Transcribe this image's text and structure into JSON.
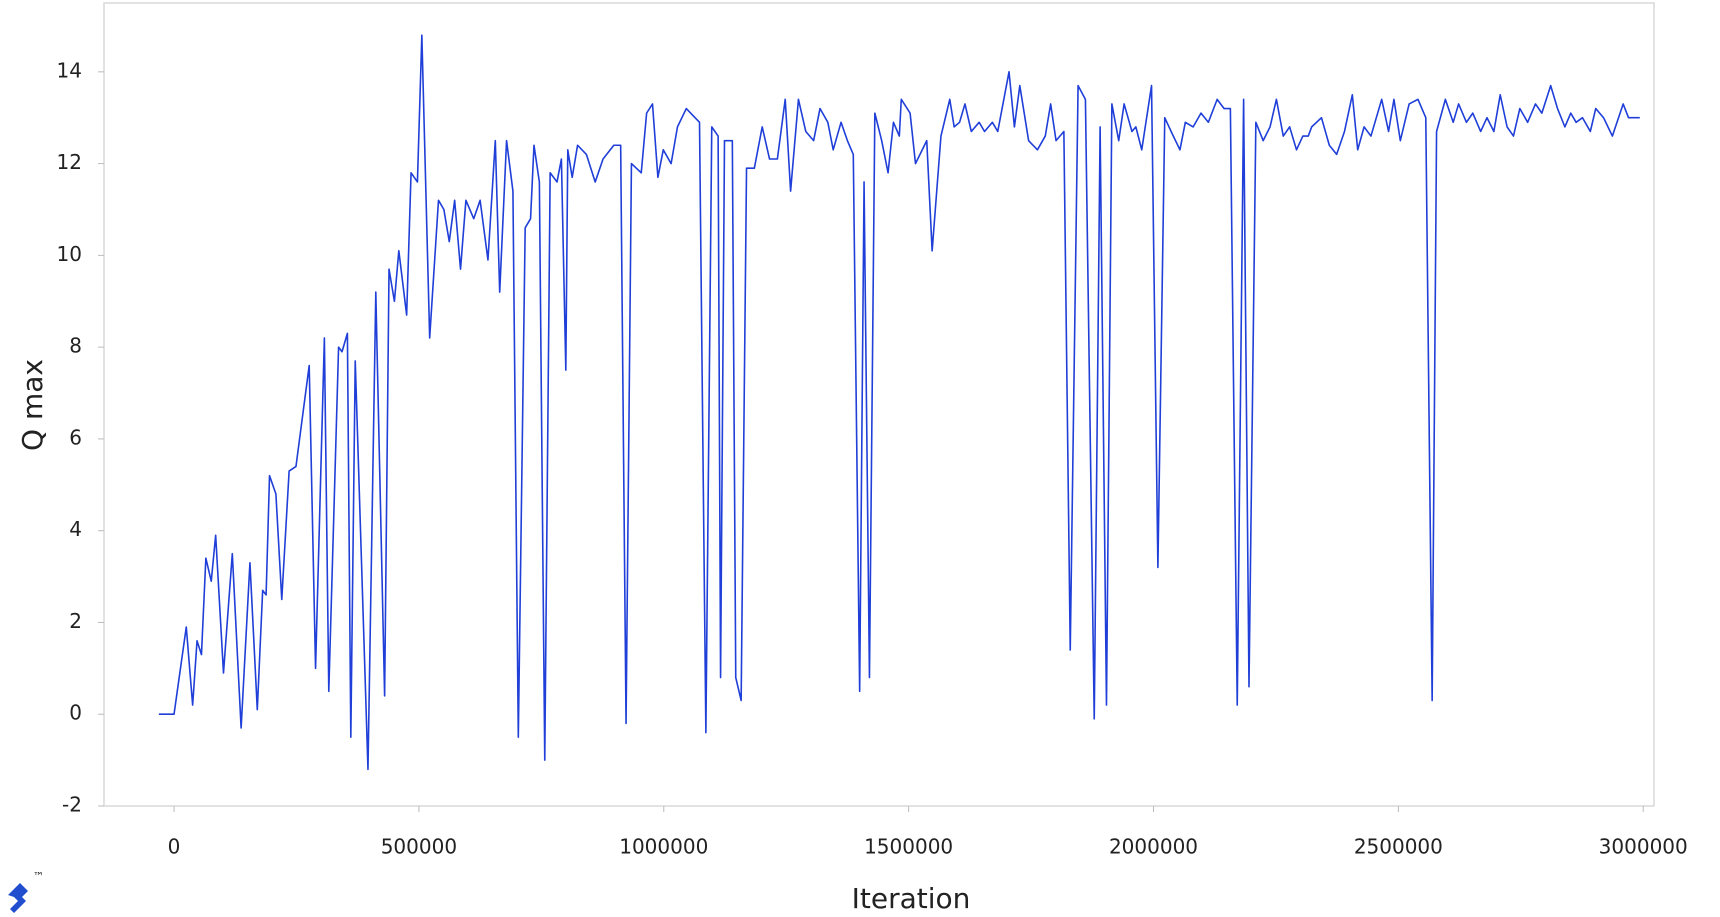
{
  "chart_data": {
    "type": "line",
    "xlabel": "Iteration",
    "ylabel": "Q max",
    "watermark": "™",
    "xlim": [
      -143000,
      3022000
    ],
    "ylim": [
      -2,
      15.5
    ],
    "xticks": [
      0,
      500000,
      1000000,
      1500000,
      2000000,
      2500000,
      3000000
    ],
    "yticks": [
      -2,
      0,
      2,
      4,
      6,
      8,
      10,
      12,
      14
    ],
    "grid": false,
    "series": [
      {
        "color": "#1f3fd8",
        "x": [
          -31000,
          0,
          25000,
          38000,
          47000,
          56000,
          65000,
          76000,
          85000,
          101000,
          119000,
          137000,
          155000,
          170000,
          181000,
          188000,
          195000,
          208000,
          220000,
          235000,
          249000,
          276000,
          289000,
          307000,
          316000,
          336000,
          343000,
          354000,
          361000,
          370000,
          396000,
          412000,
          430000,
          439000,
          450000,
          459000,
          475000,
          484000,
          497000,
          506000,
          522000,
          540000,
          551000,
          562000,
          573000,
          585000,
          596000,
          612000,
          625000,
          641000,
          656000,
          665000,
          679000,
          692000,
          703000,
          717000,
          728000,
          735000,
          746000,
          757000,
          768000,
          782000,
          791000,
          800000,
          804000,
          813000,
          824000,
          842000,
          860000,
          876000,
          898000,
          912000,
          923000,
          934000,
          954000,
          965000,
          977000,
          988000,
          999000,
          1015000,
          1028000,
          1046000,
          1073000,
          1086000,
          1098000,
          1111000,
          1116000,
          1124000,
          1140000,
          1147000,
          1158000,
          1169000,
          1185000,
          1201000,
          1216000,
          1232000,
          1248000,
          1259000,
          1275000,
          1290000,
          1306000,
          1319000,
          1335000,
          1346000,
          1362000,
          1375000,
          1387000,
          1400000,
          1409000,
          1420000,
          1431000,
          1445000,
          1458000,
          1469000,
          1481000,
          1485000,
          1503000,
          1514000,
          1537000,
          1548000,
          1566000,
          1584000,
          1593000,
          1604000,
          1615000,
          1628000,
          1644000,
          1655000,
          1671000,
          1682000,
          1705000,
          1716000,
          1727000,
          1745000,
          1763000,
          1779000,
          1790000,
          1801000,
          1817000,
          1830000,
          1846000,
          1861000,
          1879000,
          1891000,
          1904000,
          1915000,
          1929000,
          1940000,
          1956000,
          1964000,
          1976000,
          1996000,
          2009000,
          2023000,
          2036000,
          2054000,
          2065000,
          2081000,
          2097000,
          2112000,
          2130000,
          2144000,
          2157000,
          2171000,
          2184000,
          2195000,
          2209000,
          2224000,
          2238000,
          2251000,
          2265000,
          2278000,
          2292000,
          2305000,
          2316000,
          2323000,
          2343000,
          2359000,
          2374000,
          2390000,
          2406000,
          2417000,
          2430000,
          2444000,
          2455000,
          2466000,
          2480000,
          2491000,
          2504000,
          2522000,
          2540000,
          2556000,
          2569000,
          2578000,
          2596000,
          2612000,
          2623000,
          2639000,
          2652000,
          2668000,
          2681000,
          2695000,
          2708000,
          2722000,
          2735000,
          2748000,
          2764000,
          2780000,
          2793000,
          2811000,
          2825000,
          2840000,
          2852000,
          2863000,
          2876000,
          2892000,
          2903000,
          2919000,
          2937000,
          2959000,
          2970000,
          2993000
        ],
        "values": [
          0,
          0,
          1.9,
          0.2,
          1.6,
          1.3,
          3.4,
          2.9,
          3.9,
          0.9,
          3.5,
          -0.3,
          3.3,
          0.1,
          2.7,
          2.6,
          5.2,
          4.8,
          2.5,
          5.3,
          5.4,
          7.6,
          1.0,
          8.2,
          0.5,
          8.0,
          7.9,
          8.3,
          -0.5,
          7.7,
          -1.2,
          9.2,
          0.4,
          9.7,
          9.0,
          10.1,
          8.7,
          11.8,
          11.6,
          14.8,
          8.2,
          11.2,
          11.0,
          10.3,
          11.2,
          9.7,
          11.2,
          10.8,
          11.2,
          9.9,
          12.5,
          9.2,
          12.5,
          11.4,
          -0.5,
          10.6,
          10.8,
          12.4,
          11.6,
          -1.0,
          11.8,
          11.6,
          12.1,
          7.5,
          12.3,
          11.7,
          12.4,
          12.2,
          11.6,
          12.1,
          12.4,
          12.4,
          -0.2,
          12.0,
          11.8,
          13.1,
          13.3,
          11.7,
          12.3,
          12.0,
          12.8,
          13.2,
          12.9,
          -0.4,
          12.8,
          12.6,
          0.8,
          12.5,
          12.5,
          0.8,
          0.3,
          11.9,
          11.9,
          12.8,
          12.1,
          12.1,
          13.4,
          11.4,
          13.4,
          12.7,
          12.5,
          13.2,
          12.9,
          12.3,
          12.9,
          12.5,
          12.2,
          0.5,
          11.6,
          0.8,
          13.1,
          12.5,
          11.8,
          12.9,
          12.6,
          13.4,
          13.1,
          12.0,
          12.5,
          10.1,
          12.6,
          13.4,
          12.8,
          12.9,
          13.3,
          12.7,
          12.9,
          12.7,
          12.9,
          12.7,
          14.0,
          12.8,
          13.7,
          12.5,
          12.3,
          12.6,
          13.3,
          12.5,
          12.7,
          1.4,
          13.7,
          13.4,
          -0.1,
          12.8,
          0.2,
          13.3,
          12.5,
          13.3,
          12.7,
          12.8,
          12.3,
          13.7,
          3.2,
          13.0,
          12.7,
          12.3,
          12.9,
          12.8,
          13.1,
          12.9,
          13.4,
          13.2,
          13.2,
          0.2,
          13.4,
          0.6,
          12.9,
          12.5,
          12.8,
          13.4,
          12.6,
          12.8,
          12.3,
          12.6,
          12.6,
          12.8,
          13.0,
          12.4,
          12.2,
          12.7,
          13.5,
          12.3,
          12.8,
          12.6,
          13.0,
          13.4,
          12.7,
          13.4,
          12.5,
          13.3,
          13.4,
          13.0,
          0.3,
          12.7,
          13.4,
          12.9,
          13.3,
          12.9,
          13.1,
          12.7,
          13.0,
          12.7,
          13.5,
          12.8,
          12.6,
          13.2,
          12.9,
          13.3,
          13.1,
          13.7,
          13.2,
          12.8,
          13.1,
          12.9,
          13.0,
          12.7,
          13.2,
          13.0,
          12.6,
          13.3,
          13.0,
          13.0
        ]
      }
    ]
  }
}
